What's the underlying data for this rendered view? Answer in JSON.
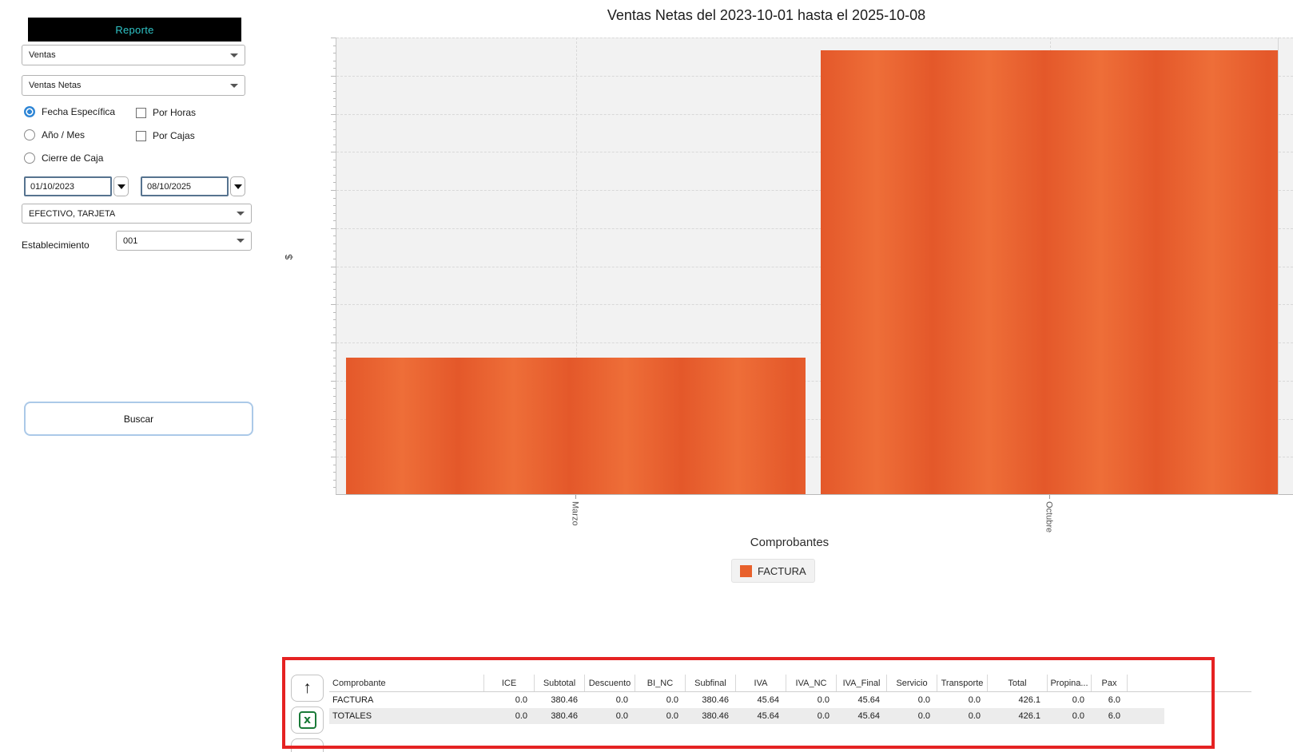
{
  "sidebar": {
    "header_label": "Reporte",
    "report_category_value": "Ventas",
    "report_type_value": "Ventas Netas",
    "radio_options": [
      {
        "label": "Fecha Específica",
        "selected": true
      },
      {
        "label": "Año / Mes",
        "selected": false
      },
      {
        "label": "Cierre de Caja",
        "selected": false
      }
    ],
    "checkbox_options": [
      {
        "label": "Por Horas",
        "checked": false
      },
      {
        "label": "Por Cajas",
        "checked": false
      }
    ],
    "date_from": "01/10/2023",
    "date_to": "08/10/2025",
    "payment_filter_value": "EFECTIVO, TARJETA",
    "establishment_label": "Establecimiento",
    "establishment_value": "001",
    "search_button_label": "Buscar"
  },
  "chart_data": {
    "type": "bar",
    "title": "Ventas Netas del 2023-10-01 hasta el 2025-10-08",
    "categories": [
      "Marzo",
      "Octubre"
    ],
    "series": [
      {
        "name": "FACTURA",
        "color": "#e8612c",
        "values": [
          89.5,
          290.96
        ]
      }
    ],
    "xlabel": "",
    "ylabel": "$",
    "ylim": [
      0,
      300
    ],
    "ytick_step": 25,
    "ytick_minor_step": 5,
    "grid": "dashed",
    "plot_bg": "#f2f2f2",
    "legend_title": "Comprobantes",
    "legend_position": "bottom"
  },
  "legend": {
    "title": "Comprobantes",
    "items": [
      {
        "label": "FACTURA",
        "color": "#e8612c"
      }
    ]
  },
  "table": {
    "columns": [
      "Comprobante",
      "ICE",
      "Subtotal",
      "Descuento",
      "BI_NC",
      "Subfinal",
      "IVA",
      "IVA_NC",
      "IVA_Final",
      "Servicio",
      "Transporte",
      "Total",
      "Propina...",
      "Pax"
    ],
    "rows": [
      {
        "cells": [
          "FACTURA",
          "0.0",
          "380.46",
          "0.0",
          "0.0",
          "380.46",
          "45.64",
          "0.0",
          "45.64",
          "0.0",
          "0.0",
          "426.1",
          "0.0",
          "6.0"
        ]
      },
      {
        "cells": [
          "TOTALES",
          "0.0",
          "380.46",
          "0.0",
          "0.0",
          "380.46",
          "45.64",
          "0.0",
          "45.64",
          "0.0",
          "0.0",
          "426.1",
          "0.0",
          "6.0"
        ]
      }
    ],
    "toolbar": {
      "up_arrow_glyph": "↑",
      "excel_glyph": "x"
    }
  },
  "colors": {
    "accent_cyan": "#2fc5c8",
    "bar_orange": "#e8612c",
    "highlight_red": "#e52222",
    "radio_blue": "#2f86d5",
    "plot_background": "#f2f2f2"
  }
}
